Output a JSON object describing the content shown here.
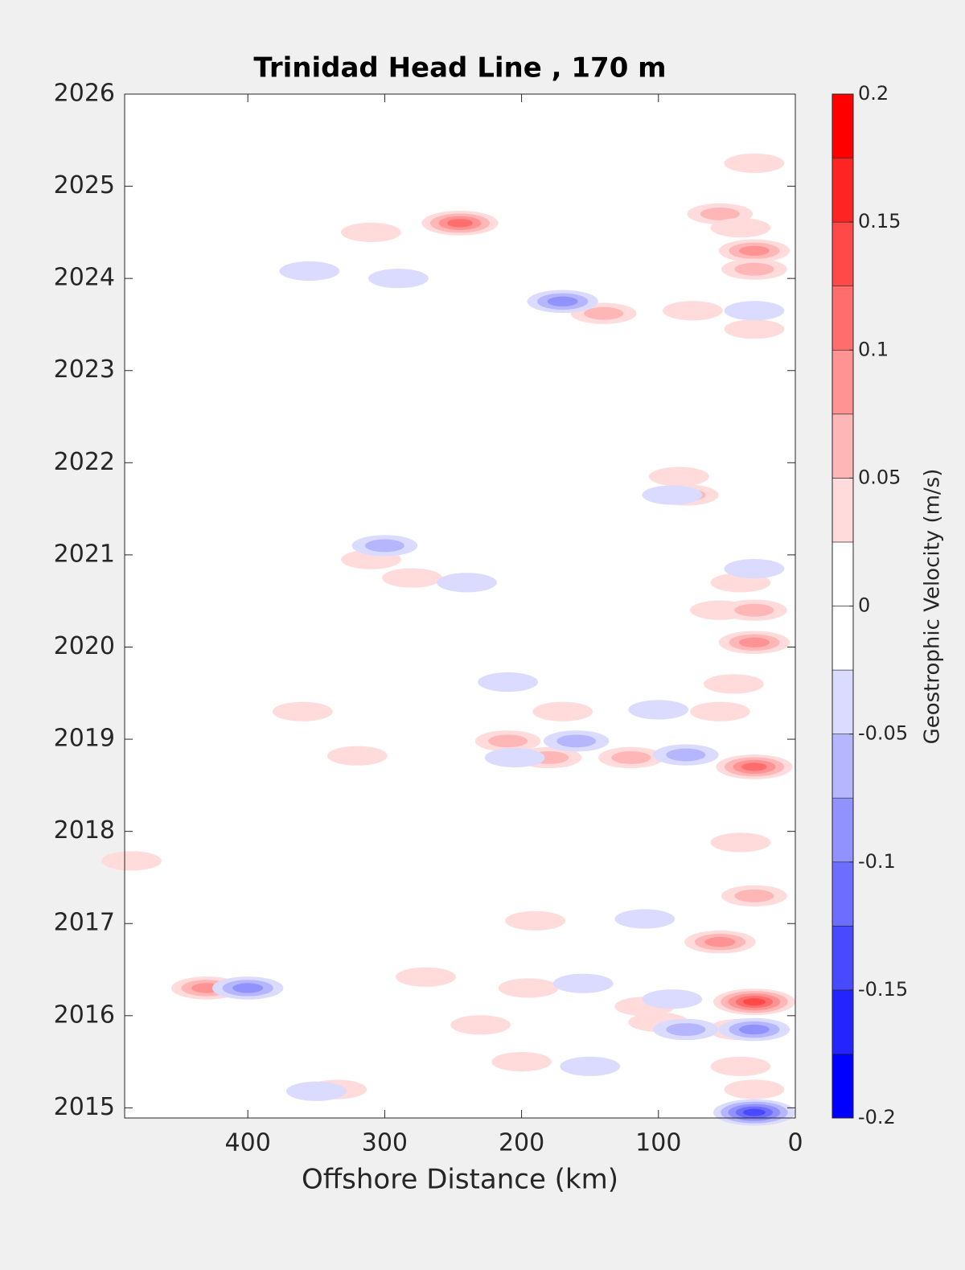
{
  "chart_data": {
    "type": "contour",
    "title": "Trinidad Head Line , 170 m",
    "x_label": "Offshore Distance (km)",
    "colorbar_label": "Geostrophic Velocity (m/s)",
    "xlim": [
      490,
      0
    ],
    "xticks": [
      400,
      300,
      200,
      100,
      0
    ],
    "ylim": [
      2014.89,
      2026
    ],
    "yticks": [
      2015,
      2016,
      2017,
      2018,
      2019,
      2020,
      2021,
      2022,
      2023,
      2024,
      2025,
      2026
    ],
    "clim": [
      -0.2,
      0.2
    ],
    "cticks": [
      -0.2,
      -0.15,
      -0.1,
      -0.05,
      0,
      0.05,
      0.1,
      0.15,
      0.2
    ],
    "levels": 16,
    "colormap": [
      "#0000ff",
      "#ffffff",
      "#ff0000"
    ],
    "points": {
      "x": [
        245,
        30,
        55,
        40,
        30,
        30,
        310,
        140,
        75,
        30,
        80,
        85,
        310,
        280,
        40,
        55,
        30,
        30,
        45,
        170,
        55,
        210,
        180,
        120,
        30,
        360,
        320,
        485,
        40,
        30,
        55,
        190,
        430,
        30,
        195,
        110,
        40,
        335,
        30,
        230,
        200,
        270,
        100,
        40,
        355,
        290,
        170,
        30,
        300,
        90,
        240,
        160,
        80,
        205,
        100,
        210,
        400,
        110,
        90,
        80,
        30,
        150,
        350,
        30,
        155,
        30
      ],
      "y": [
        2024.6,
        2025.25,
        2024.7,
        2024.55,
        2024.3,
        2024.1,
        2024.5,
        2023.62,
        2023.65,
        2023.45,
        2021.65,
        2021.85,
        2020.95,
        2020.75,
        2020.7,
        2020.4,
        2020.4,
        2020.05,
        2019.6,
        2019.3,
        2019.3,
        2018.98,
        2018.8,
        2018.8,
        2018.7,
        2019.3,
        2018.82,
        2017.68,
        2017.88,
        2017.3,
        2016.8,
        2017.03,
        2016.3,
        2016.15,
        2016.3,
        2016.1,
        2015.85,
        2015.2,
        2015.2,
        2015.9,
        2015.5,
        2016.42,
        2015.93,
        2015.45,
        2024.08,
        2024.0,
        2023.75,
        2023.65,
        2021.1,
        2021.65,
        2020.7,
        2018.98,
        2018.83,
        2018.8,
        2019.32,
        2019.62,
        2016.3,
        2017.05,
        2016.18,
        2015.85,
        2015.85,
        2015.45,
        2015.18,
        2014.95,
        2016.35,
        2020.85
      ],
      "values": [
        0.125,
        0.05,
        0.075,
        0.05,
        0.1,
        0.075,
        0.05,
        0.075,
        0.05,
        0.05,
        0.075,
        0.05,
        0.05,
        0.05,
        0.05,
        0.05,
        0.075,
        0.1,
        0.05,
        0.05,
        0.05,
        0.075,
        0.075,
        0.075,
        0.125,
        0.05,
        0.05,
        0.05,
        0.05,
        0.075,
        0.1,
        0.05,
        0.1,
        0.15,
        0.05,
        0.05,
        0.075,
        0.05,
        0.05,
        0.05,
        0.05,
        0.05,
        0.05,
        0.05,
        -0.05,
        -0.05,
        -0.1,
        -0.05,
        -0.075,
        -0.05,
        -0.05,
        -0.075,
        -0.075,
        -0.05,
        -0.05,
        -0.05,
        -0.1,
        -0.05,
        -0.05,
        -0.075,
        -0.1,
        -0.05,
        -0.05,
        -0.15,
        -0.05,
        -0.05
      ]
    }
  }
}
